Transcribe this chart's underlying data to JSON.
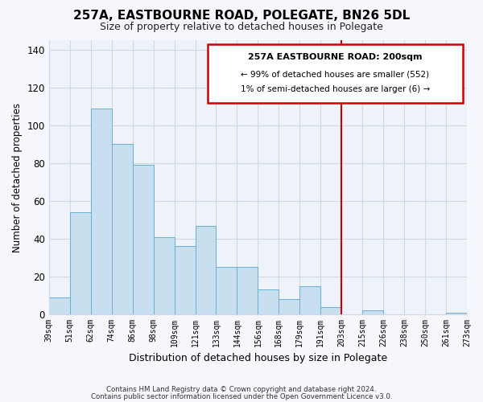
{
  "title": "257A, EASTBOURNE ROAD, POLEGATE, BN26 5DL",
  "subtitle": "Size of property relative to detached houses in Polegate",
  "xlabel": "Distribution of detached houses by size in Polegate",
  "ylabel": "Number of detached properties",
  "bar_labels": [
    "39sqm",
    "51sqm",
    "62sqm",
    "74sqm",
    "86sqm",
    "98sqm",
    "109sqm",
    "121sqm",
    "133sqm",
    "144sqm",
    "156sqm",
    "168sqm",
    "179sqm",
    "191sqm",
    "203sqm",
    "215sqm",
    "226sqm",
    "238sqm",
    "250sqm",
    "261sqm",
    "273sqm"
  ],
  "bar_values": [
    9,
    54,
    109,
    90,
    79,
    41,
    36,
    47,
    25,
    25,
    13,
    8,
    15,
    4,
    0,
    2,
    0,
    0,
    0,
    1
  ],
  "bar_color": "#c8dff0",
  "bar_edge_color": "#6aafd4",
  "vline_color": "#cc0000",
  "ylim": [
    0,
    145
  ],
  "yticks": [
    0,
    20,
    40,
    60,
    80,
    100,
    120,
    140
  ],
  "annotation_title": "257A EASTBOURNE ROAD: 200sqm",
  "annotation_line1": "← 99% of detached houses are smaller (552)",
  "annotation_line2": "1% of semi-detached houses are larger (6) →",
  "footnote1": "Contains HM Land Registry data © Crown copyright and database right 2024.",
  "footnote2": "Contains public sector information licensed under the Open Government Licence v3.0.",
  "plot_bg_color": "#eef2f9",
  "fig_bg_color": "#f5f7fc",
  "grid_color": "#d0d8e8"
}
